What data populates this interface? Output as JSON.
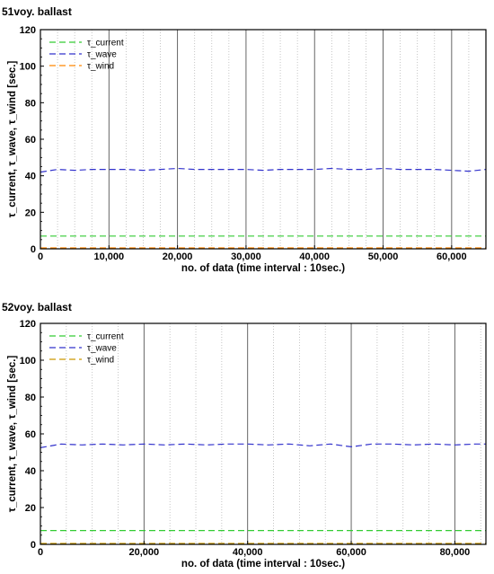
{
  "chart_data": [
    {
      "type": "line",
      "title": "51voy. ballast",
      "xlabel": "no. of data (time interval : 10sec.)",
      "ylabel": "τ_current, τ_wave, τ_wind [sec.]",
      "xlim": [
        0,
        65000
      ],
      "ylim": [
        0,
        120
      ],
      "x_ticks": [
        0,
        10000,
        20000,
        30000,
        40000,
        50000,
        60000
      ],
      "x_tick_labels": [
        "0",
        "10,000",
        "20,000",
        "30,000",
        "40,000",
        "50,000",
        "60,000"
      ],
      "y_ticks": [
        0,
        20,
        40,
        60,
        80,
        100,
        120
      ],
      "y_tick_labels": [
        "0",
        "20",
        "40",
        "60",
        "80",
        "100",
        "120"
      ],
      "legend_position": "top-left",
      "x": [
        0,
        2500,
        5000,
        7500,
        10000,
        12500,
        15000,
        17500,
        20000,
        22500,
        25000,
        27500,
        30000,
        32500,
        35000,
        37500,
        40000,
        42500,
        45000,
        47500,
        50000,
        52500,
        55000,
        57500,
        60000,
        62500,
        65000
      ],
      "series": [
        {
          "name": "τ_current",
          "color": "#33cc33",
          "values": [
            7.0,
            7.0,
            7.0,
            7.0,
            7.0,
            7.0,
            7.0,
            7.0,
            7.0,
            7.0,
            7.0,
            7.0,
            7.0,
            7.0,
            7.0,
            7.0,
            7.0,
            7.0,
            7.0,
            7.0,
            7.0,
            7.0,
            7.0,
            7.0,
            7.0,
            7.0,
            7.0
          ]
        },
        {
          "name": "τ_wave",
          "color": "#3333cc",
          "values": [
            42.0,
            43.5,
            43.0,
            43.5,
            43.5,
            43.5,
            43.0,
            43.5,
            44.0,
            43.5,
            43.5,
            43.5,
            43.5,
            43.0,
            43.5,
            43.5,
            43.5,
            44.0,
            43.5,
            43.5,
            44.0,
            43.5,
            43.5,
            43.5,
            43.0,
            42.5,
            43.5
          ]
        },
        {
          "name": "τ_wind",
          "color": "#ff8800",
          "values": [
            0.5,
            0.5,
            0.5,
            0.5,
            0.5,
            0.5,
            0.5,
            0.5,
            0.5,
            0.5,
            0.5,
            0.5,
            0.5,
            0.5,
            0.5,
            0.5,
            0.5,
            0.5,
            0.5,
            0.5,
            0.5,
            0.5,
            0.5,
            0.5,
            0.5,
            0.5,
            0.5
          ]
        }
      ]
    },
    {
      "type": "line",
      "title": "52voy. ballast",
      "xlabel": "no. of data (time interval : 10sec.)",
      "ylabel": "τ_current, τ_wave, τ_wind [sec.]",
      "xlim": [
        0,
        86000
      ],
      "ylim": [
        0,
        120
      ],
      "x_ticks": [
        0,
        20000,
        40000,
        60000,
        80000
      ],
      "x_tick_labels": [
        "0",
        "20,000",
        "40,000",
        "60,000",
        "80,000"
      ],
      "y_ticks": [
        0,
        20,
        40,
        60,
        80,
        100,
        120
      ],
      "y_tick_labels": [
        "0",
        "20",
        "40",
        "60",
        "80",
        "100",
        "120"
      ],
      "legend_position": "top-left",
      "x": [
        0,
        4000,
        8000,
        12000,
        16000,
        20000,
        24000,
        28000,
        32000,
        36000,
        40000,
        44000,
        48000,
        52000,
        56000,
        60000,
        64000,
        68000,
        72000,
        76000,
        80000,
        84000,
        86000
      ],
      "series": [
        {
          "name": "τ_current",
          "color": "#33cc33",
          "values": [
            7.5,
            7.5,
            7.5,
            7.5,
            7.5,
            7.5,
            7.5,
            7.5,
            7.5,
            7.5,
            7.5,
            7.5,
            7.5,
            7.5,
            7.5,
            7.5,
            7.5,
            7.5,
            7.5,
            7.5,
            7.5,
            7.5,
            7.5
          ]
        },
        {
          "name": "τ_wave",
          "color": "#3333cc",
          "values": [
            52.5,
            54.5,
            54.0,
            54.5,
            54.0,
            54.5,
            54.0,
            54.5,
            54.0,
            54.5,
            54.5,
            54.0,
            54.5,
            53.5,
            54.5,
            53.0,
            54.5,
            54.5,
            54.0,
            54.5,
            54.0,
            54.5,
            54.5
          ]
        },
        {
          "name": "τ_wind",
          "color": "#cc9900",
          "values": [
            0.5,
            0.5,
            0.5,
            0.5,
            0.5,
            0.5,
            0.5,
            0.5,
            0.5,
            0.5,
            0.5,
            0.5,
            0.5,
            0.5,
            0.5,
            0.5,
            0.5,
            0.5,
            0.5,
            0.5,
            0.5,
            0.5,
            0.5
          ]
        }
      ]
    }
  ]
}
